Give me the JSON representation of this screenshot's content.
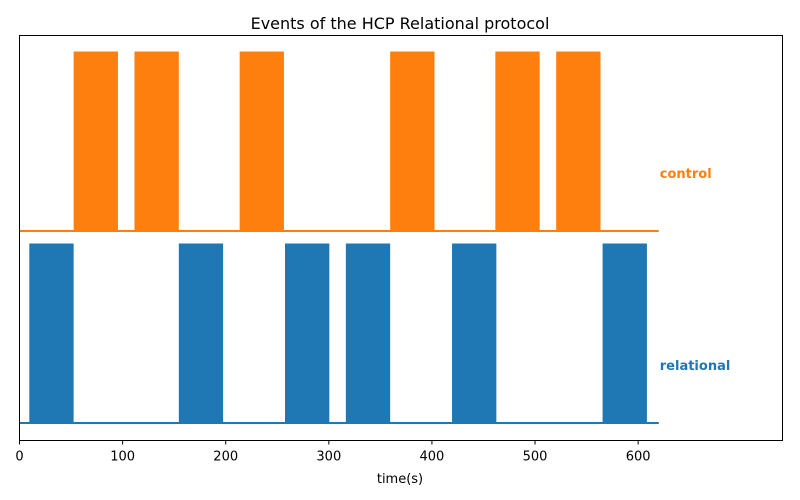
{
  "chart_data": {
    "type": "step",
    "title": "Events of the HCP Relational protocol",
    "xlabel": "time(s)",
    "ylabel": "",
    "xlim": [
      0,
      740
    ],
    "xticks": [
      0,
      100,
      200,
      300,
      400,
      500,
      600
    ],
    "x_extent": [
      0,
      620
    ],
    "grid": false,
    "series": [
      {
        "name": "control",
        "color": "#ff7f0e",
        "blocks": [
          [
            53,
            95
          ],
          [
            112,
            154
          ],
          [
            214,
            256
          ],
          [
            360,
            402
          ],
          [
            462,
            504
          ],
          [
            521,
            563
          ]
        ]
      },
      {
        "name": "relational",
        "color": "#1f77b4",
        "blocks": [
          [
            10,
            52
          ],
          [
            155,
            197
          ],
          [
            258,
            300
          ],
          [
            317,
            359
          ],
          [
            420,
            462
          ],
          [
            566,
            608
          ]
        ]
      }
    ]
  }
}
